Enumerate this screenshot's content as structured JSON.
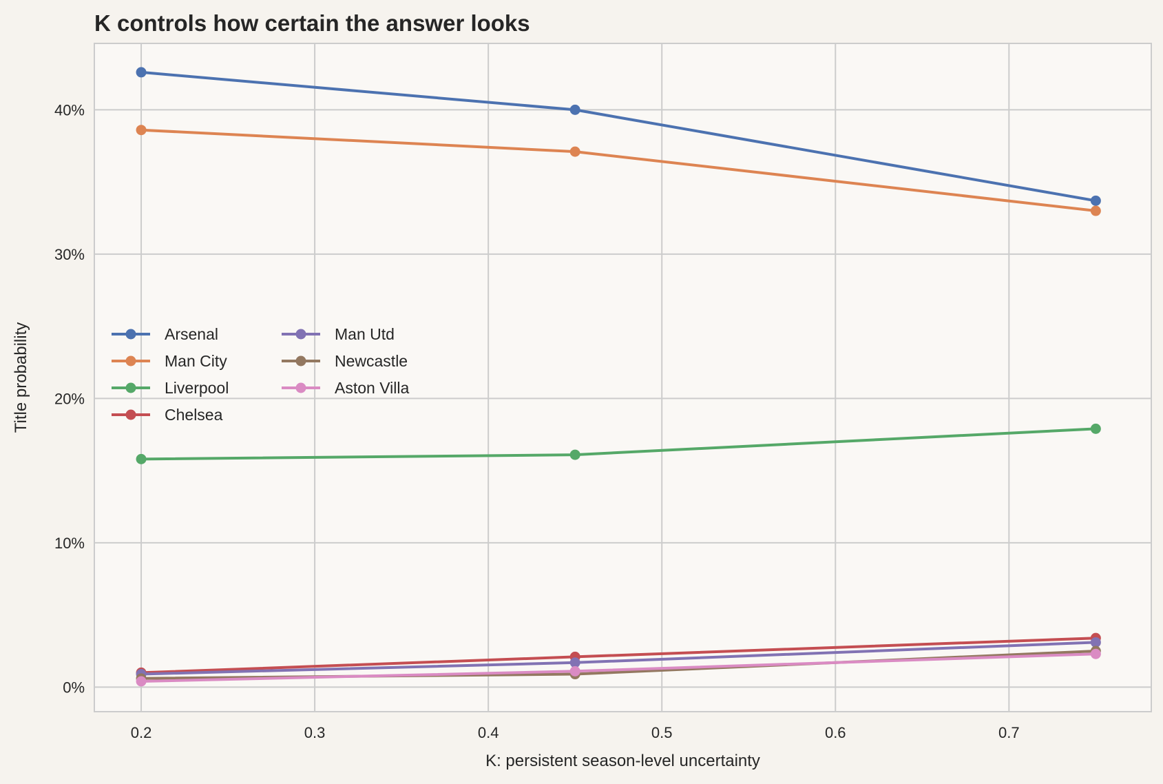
{
  "chart_data": {
    "type": "line",
    "title": "K controls how certain the answer looks",
    "xlabel": "K: persistent season-level uncertainty",
    "ylabel": "Title probability",
    "x": [
      0.2,
      0.45,
      0.75
    ],
    "xlim": [
      0.173,
      0.782
    ],
    "ylim": [
      -1.7,
      44.6
    ],
    "xticks": [
      0.2,
      0.3,
      0.4,
      0.5,
      0.6,
      0.7
    ],
    "xtick_labels": [
      "0.2",
      "0.3",
      "0.4",
      "0.5",
      "0.6",
      "0.7"
    ],
    "yticks": [
      0,
      10,
      20,
      30,
      40
    ],
    "ytick_labels": [
      "0%",
      "10%",
      "20%",
      "30%",
      "40%"
    ],
    "grid": true,
    "legend": {
      "placement": "center-left",
      "columns": 2
    },
    "series": [
      {
        "name": "Arsenal",
        "color": "#4c72b0",
        "values": [
          42.6,
          40.0,
          33.7
        ]
      },
      {
        "name": "Man City",
        "color": "#dd8452",
        "values": [
          38.6,
          37.1,
          33.0
        ]
      },
      {
        "name": "Liverpool",
        "color": "#55a868",
        "values": [
          15.8,
          16.1,
          17.9
        ]
      },
      {
        "name": "Chelsea",
        "color": "#c44e52",
        "values": [
          1.0,
          2.1,
          3.4
        ]
      },
      {
        "name": "Man Utd",
        "color": "#8172b3",
        "values": [
          0.9,
          1.7,
          3.1
        ]
      },
      {
        "name": "Newcastle",
        "color": "#937860",
        "values": [
          0.6,
          0.9,
          2.5
        ]
      },
      {
        "name": "Aston Villa",
        "color": "#da8bc3",
        "values": [
          0.4,
          1.1,
          2.3
        ]
      }
    ]
  }
}
